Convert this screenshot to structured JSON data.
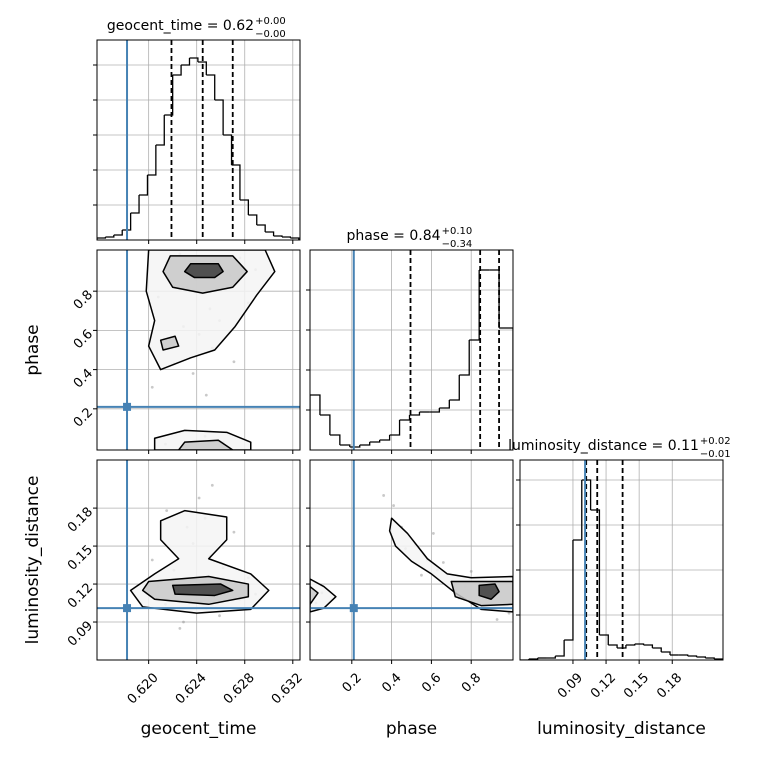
{
  "chart_data": [
    {
      "type": "histogram",
      "title": "geocent_time = 0.62",
      "title_upper": "+0.00",
      "title_lower": "−0.00",
      "bins": [
        0.6157,
        0.6164,
        0.6171,
        0.6178,
        0.6185,
        0.6192,
        0.6199,
        0.6206,
        0.6213,
        0.622,
        0.6227,
        0.6234,
        0.6241,
        0.6248,
        0.6255,
        0.6262,
        0.6269,
        0.6276,
        0.6283,
        0.629,
        0.6297,
        0.6304,
        0.6311,
        0.6318,
        0.6325
      ],
      "counts": [
        2,
        3,
        5,
        10,
        27,
        45,
        65,
        95,
        125,
        165,
        175,
        182,
        178,
        165,
        140,
        105,
        75,
        40,
        25,
        15,
        8,
        4,
        3,
        2
      ],
      "xlim": [
        0.6157,
        0.6326
      ],
      "ylim": [
        0,
        200
      ],
      "xgrid": [
        0.62,
        0.624,
        0.628,
        0.632
      ],
      "ygrid": [
        35,
        70,
        105,
        140,
        175
      ],
      "quantiles": [
        0.6219,
        0.6245,
        0.627
      ],
      "truth": 0.6182,
      "color": "#000000",
      "truth_color": "#4682b4"
    },
    {
      "type": "scatter",
      "xlim": [
        0.6157,
        0.6326
      ],
      "ylim": [
        -0.01,
        1.01
      ],
      "xgrid": [
        0.62,
        0.624,
        0.628,
        0.632
      ],
      "yticks": [
        0.2,
        0.4,
        0.6,
        0.8
      ],
      "ylabel": "phase",
      "truths": [
        0.6182,
        0.21
      ],
      "x": [
        0.6215,
        0.6232,
        0.6251,
        0.6268,
        0.6242,
        0.6221,
        0.6276,
        0.6259,
        0.6208,
        0.6237,
        0.6289,
        0.6229,
        0.6262,
        0.6247,
        0.6214,
        0.6253,
        0.6283,
        0.6226,
        0.6271,
        0.6239,
        0.6203,
        0.6248
      ],
      "y": [
        0.95,
        0.82,
        0.71,
        0.88,
        0.58,
        0.43,
        0.97,
        0.65,
        0.77,
        0.38,
        0.91,
        0.62,
        0.03,
        0.06,
        0.02,
        0.51,
        0.74,
        0.99,
        0.44,
        0.86,
        0.31,
        0.27
      ],
      "contour_fill": [
        "#f5f5f5",
        "#c8c8c8",
        "#3a3a3a"
      ],
      "contours": [
        {
          "level": 0,
          "x": [
            0.62,
            0.6297,
            0.6305,
            0.629,
            0.6272,
            0.6255,
            0.6235,
            0.621,
            0.62,
            0.6205,
            0.6198
          ],
          "y": [
            1.01,
            1.01,
            0.9,
            0.78,
            0.62,
            0.5,
            0.46,
            0.4,
            0.52,
            0.65,
            0.8
          ]
        },
        {
          "level": 1,
          "x": [
            0.6218,
            0.627,
            0.6282,
            0.627,
            0.6245,
            0.622,
            0.6212
          ],
          "y": [
            0.98,
            0.98,
            0.9,
            0.82,
            0.79,
            0.82,
            0.9
          ]
        },
        {
          "level": 2,
          "x": [
            0.6235,
            0.6258,
            0.6262,
            0.6255,
            0.6238,
            0.623
          ],
          "y": [
            0.94,
            0.94,
            0.9,
            0.87,
            0.87,
            0.9
          ]
        },
        {
          "level": 1,
          "x": [
            0.621,
            0.6222,
            0.6225,
            0.6212
          ],
          "y": [
            0.55,
            0.57,
            0.52,
            0.5
          ]
        },
        {
          "level": 0,
          "x": [
            0.6205,
            0.6205,
            0.623,
            0.6265,
            0.6285,
            0.6285
          ],
          "y": [
            -0.01,
            0.05,
            0.09,
            0.08,
            0.03,
            -0.01
          ]
        },
        {
          "level": 1,
          "x": [
            0.6225,
            0.623,
            0.6258,
            0.627
          ],
          "y": [
            -0.01,
            0.03,
            0.04,
            -0.01
          ]
        }
      ]
    },
    {
      "type": "histogram",
      "title": "phase = 0.84",
      "title_upper": "+0.10",
      "title_lower": "−0.34",
      "bins": [
        -0.01,
        0.04,
        0.09,
        0.14,
        0.19,
        0.24,
        0.29,
        0.34,
        0.39,
        0.44,
        0.49,
        0.54,
        0.59,
        0.64,
        0.69,
        0.74,
        0.79,
        0.84,
        0.89,
        0.94,
        1.01
      ],
      "counts": [
        55,
        35,
        15,
        5,
        3,
        5,
        8,
        10,
        15,
        30,
        35,
        38,
        38,
        42,
        50,
        75,
        110,
        180,
        180,
        122
      ],
      "xlim": [
        -0.01,
        1.01
      ],
      "ylim": [
        0,
        200
      ],
      "xgrid": [
        0.2,
        0.4,
        0.6,
        0.8
      ],
      "ygrid": [
        40,
        80,
        120,
        160
      ],
      "quantiles": [
        0.495,
        0.845,
        0.94
      ],
      "truth": 0.21,
      "color": "#000000",
      "truth_color": "#4682b4"
    },
    {
      "type": "scatter",
      "xlim": [
        0.6157,
        0.6326
      ],
      "ylim": [
        0.06,
        0.218
      ],
      "xticks": [
        {
          "value": 0.62,
          "label": "0.620"
        },
        0.624,
        0.628,
        0.632
      ],
      "yticks": [
        0.09,
        0.12,
        0.15,
        0.18
      ],
      "xlabel": "geocent_time",
      "ylabel": "luminosity_distance",
      "truths": [
        0.6182,
        0.101
      ],
      "x": [
        0.6215,
        0.6232,
        0.6251,
        0.6268,
        0.6242,
        0.6221,
        0.6276,
        0.6259,
        0.6208,
        0.6237,
        0.6289,
        0.6229,
        0.6262,
        0.6247,
        0.6214,
        0.6253,
        0.6283,
        0.6226,
        0.6271,
        0.6239,
        0.6203,
        0.6248
      ],
      "y": [
        0.178,
        0.165,
        0.142,
        0.121,
        0.188,
        0.131,
        0.108,
        0.095,
        0.118,
        0.152,
        0.112,
        0.09,
        0.133,
        0.172,
        0.104,
        0.198,
        0.125,
        0.085,
        0.161,
        0.113,
        0.139,
        0.101
      ],
      "contour_fill": [
        "#f5f5f5",
        "#c8c8c8",
        "#3a3a3a"
      ],
      "contours": [
        {
          "level": 0,
          "x": [
            0.621,
            0.623,
            0.6265,
            0.6265,
            0.625,
            0.6285,
            0.63,
            0.6285,
            0.624,
            0.6195,
            0.6185,
            0.6205,
            0.6225,
            0.621
          ],
          "y": [
            0.17,
            0.178,
            0.173,
            0.155,
            0.14,
            0.128,
            0.115,
            0.1,
            0.097,
            0.102,
            0.115,
            0.128,
            0.14,
            0.155
          ]
        },
        {
          "level": 1,
          "x": [
            0.62,
            0.625,
            0.6283,
            0.6283,
            0.625,
            0.6205,
            0.6195
          ],
          "y": [
            0.122,
            0.126,
            0.12,
            0.11,
            0.104,
            0.108,
            0.115
          ]
        },
        {
          "level": 2,
          "x": [
            0.622,
            0.626,
            0.627,
            0.6255,
            0.6222
          ],
          "y": [
            0.119,
            0.12,
            0.115,
            0.111,
            0.112
          ]
        }
      ]
    },
    {
      "type": "scatter",
      "xlim": [
        -0.01,
        1.01
      ],
      "ylim": [
        0.06,
        0.218
      ],
      "xticks": [
        0.2,
        0.4,
        0.6,
        0.8
      ],
      "ygrid": [
        0.09,
        0.12,
        0.15,
        0.18
      ],
      "xlabel": "phase",
      "truths": [
        0.21,
        0.101
      ],
      "x": [
        0.41,
        0.45,
        0.52,
        0.58,
        0.63,
        0.7,
        0.77,
        0.83,
        0.9,
        0.95,
        0.99,
        0.05,
        0.02,
        0.47,
        0.55,
        0.66,
        0.74,
        0.88,
        0.36,
        0.61,
        0.93,
        0.8
      ],
      "y": [
        0.182,
        0.165,
        0.151,
        0.139,
        0.131,
        0.122,
        0.118,
        0.115,
        0.112,
        0.104,
        0.097,
        0.113,
        0.105,
        0.148,
        0.127,
        0.137,
        0.109,
        0.121,
        0.19,
        0.16,
        0.092,
        0.13
      ],
      "contour_fill": [
        "#f5f5f5",
        "#c8c8c8",
        "#3a3a3a"
      ],
      "contours": [
        {
          "level": 0,
          "x": [
            0.4,
            0.48,
            0.58,
            0.68,
            0.8,
            1.01,
            1.01,
            0.85,
            0.72,
            0.6,
            0.5,
            0.42,
            0.39
          ],
          "y": [
            0.172,
            0.16,
            0.14,
            0.128,
            0.125,
            0.126,
            0.098,
            0.1,
            0.113,
            0.128,
            0.138,
            0.15,
            0.162
          ]
        },
        {
          "level": 1,
          "x": [
            0.7,
            1.01,
            1.01,
            0.85,
            0.72
          ],
          "y": [
            0.122,
            0.122,
            0.104,
            0.103,
            0.11
          ]
        },
        {
          "level": 2,
          "x": [
            0.84,
            0.92,
            0.94,
            0.9,
            0.84
          ],
          "y": [
            0.119,
            0.12,
            0.114,
            0.108,
            0.111
          ]
        },
        {
          "level": 0,
          "x": [
            -0.01,
            0.06,
            0.12,
            0.06,
            -0.01
          ],
          "y": [
            0.124,
            0.118,
            0.11,
            0.101,
            0.098
          ]
        },
        {
          "level": 1,
          "x": [
            -0.01,
            0.03,
            -0.01
          ],
          "y": [
            0.118,
            0.113,
            0.104
          ]
        }
      ]
    },
    {
      "type": "histogram",
      "title": "luminosity_distance = 0.11",
      "title_upper": "+0.02",
      "title_lower": "−0.01",
      "bins": [
        0.042,
        0.05,
        0.058,
        0.066,
        0.074,
        0.082,
        0.09,
        0.098,
        0.106,
        0.114,
        0.122,
        0.13,
        0.138,
        0.146,
        0.154,
        0.162,
        0.17,
        0.178,
        0.186,
        0.194,
        0.202,
        0.21,
        0.218,
        0.226
      ],
      "counts": [
        0,
        1,
        2,
        2,
        4,
        20,
        120,
        180,
        150,
        25,
        15,
        12,
        15,
        16,
        15,
        12,
        8,
        5,
        5,
        4,
        3,
        2,
        1
      ],
      "xlim": [
        0.042,
        0.226
      ],
      "ylim": [
        0,
        200
      ],
      "xticks": [
        0.09,
        0.12,
        0.15,
        0.18
      ],
      "ygrid": [
        45,
        90,
        135,
        180
      ],
      "xlabel": "luminosity_distance",
      "quantiles": [
        0.102,
        0.112,
        0.135
      ],
      "truth": 0.101,
      "color": "#000000",
      "truth_color": "#4682b4"
    }
  ]
}
